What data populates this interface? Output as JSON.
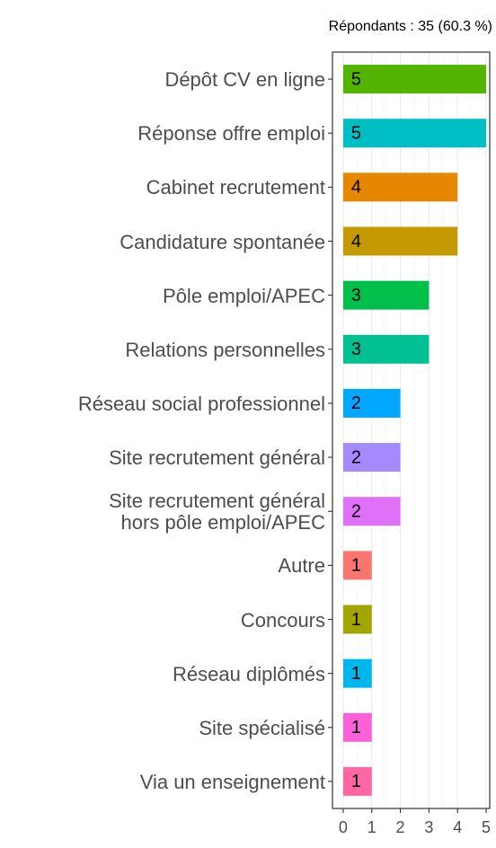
{
  "chart_data": {
    "type": "hbar",
    "subtitle": "Répondants : 35 (60.3 %)",
    "categories": [
      "Dépôt CV en ligne",
      "Réponse offre emploi",
      "Cabinet recrutement",
      "Candidature spontanée",
      "Pôle emploi/APEC",
      "Relations personnelles",
      "Réseau social professionnel",
      "Site recrutement général",
      "Site recrutement général\nhors pôle emploi/APEC",
      "Autre",
      "Concours",
      "Réseau diplômés",
      "Site spécialisé",
      "Via un enseignement"
    ],
    "values": [
      5,
      5,
      4,
      4,
      3,
      3,
      2,
      2,
      2,
      1,
      1,
      1,
      1,
      1
    ],
    "colors": [
      "#53b400",
      "#00bfc4",
      "#e58700",
      "#c49a00",
      "#00c04b",
      "#00c094",
      "#00a9ff",
      "#a58aff",
      "#df70f8",
      "#f8766d",
      "#a3a500",
      "#00b6eb",
      "#fb61d7",
      "#ff67a4"
    ],
    "xlim": [
      -0.375,
      5.125
    ],
    "xticks": [
      0,
      1,
      2,
      3,
      4,
      5
    ],
    "grid": true
  }
}
